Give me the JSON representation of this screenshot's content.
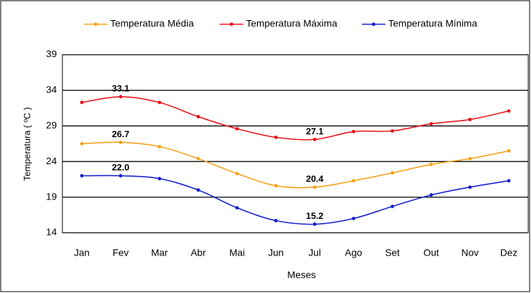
{
  "chart_data": {
    "type": "line",
    "categories": [
      "Jan",
      "Fev",
      "Mar",
      "Abr",
      "Mai",
      "Jun",
      "Jul",
      "Ago",
      "Set",
      "Out",
      "Nov",
      "Dez"
    ],
    "series": [
      {
        "name": "Temperatura Média",
        "color": "#f5a01a",
        "values": [
          26.5,
          26.7,
          26.1,
          24.4,
          22.3,
          20.6,
          20.4,
          21.3,
          22.4,
          23.6,
          24.4,
          25.5
        ],
        "value_labels": [
          null,
          "26.7",
          null,
          null,
          null,
          null,
          "20.4",
          null,
          null,
          null,
          null,
          null
        ]
      },
      {
        "name": "Temperatura Máxima",
        "color": "#e8141a",
        "values": [
          32.3,
          33.1,
          32.3,
          30.3,
          28.6,
          27.4,
          27.1,
          28.2,
          28.3,
          29.3,
          29.9,
          31.1
        ],
        "value_labels": [
          null,
          "33.1",
          null,
          null,
          null,
          null,
          "27.1",
          null,
          null,
          null,
          null,
          null
        ]
      },
      {
        "name": "Temperatura Mínima",
        "color": "#1420d0",
        "values": [
          22.0,
          22.0,
          21.6,
          20.0,
          17.5,
          15.7,
          15.2,
          16.0,
          17.7,
          19.3,
          20.4,
          21.3
        ],
        "value_labels": [
          null,
          "22.0",
          null,
          null,
          null,
          null,
          "15.2",
          null,
          null,
          null,
          null,
          null
        ]
      }
    ],
    "xlabel": "Meses",
    "ylabel": "Temperatura ( ºC )",
    "ylim": [
      14,
      39
    ],
    "yticks": [
      14,
      19,
      24,
      29,
      34,
      39
    ],
    "grid": true,
    "legend": "top"
  }
}
